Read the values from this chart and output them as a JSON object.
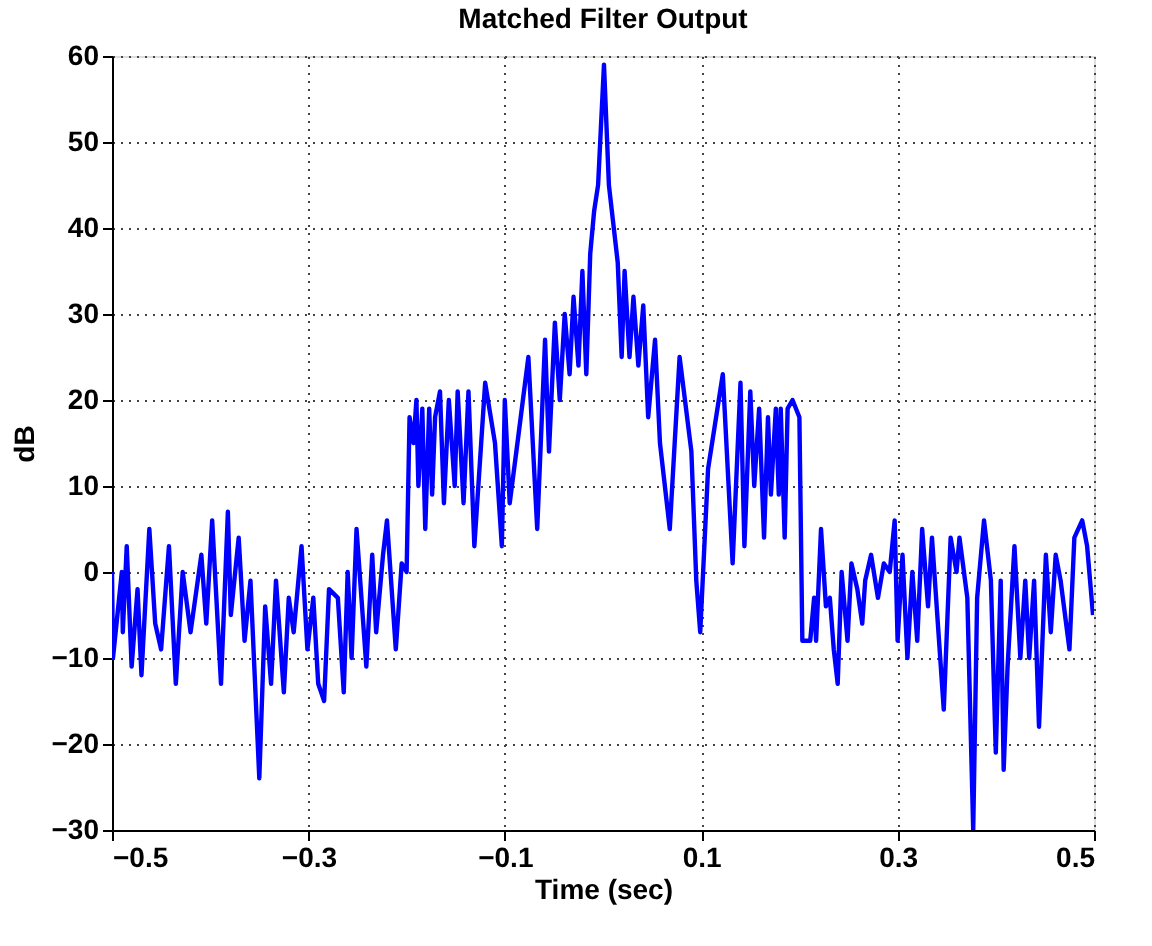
{
  "chart_data": {
    "type": "line",
    "title": "Matched Filter Output",
    "xlabel": "Time (sec)",
    "ylabel": "dB",
    "xlim": [
      -0.5,
      0.5
    ],
    "xticks": [
      -0.5,
      -0.3,
      -0.1,
      0.1,
      0.3,
      0.5
    ],
    "ylim": [
      -30,
      60
    ],
    "yticks": [
      -30,
      -20,
      -10,
      0,
      10,
      20,
      30,
      40,
      50,
      60
    ],
    "grid": true,
    "legend": false,
    "marker": "none",
    "line_style": "solid",
    "series": [
      {
        "color": "#0000ff",
        "x": [
          -0.5,
          -0.499,
          -0.49,
          -0.489,
          -0.485,
          -0.48,
          -0.474,
          -0.47,
          -0.462,
          -0.456,
          -0.45,
          -0.442,
          -0.435,
          -0.428,
          -0.42,
          -0.409,
          -0.404,
          -0.398,
          -0.389,
          -0.382,
          -0.379,
          -0.371,
          -0.365,
          -0.359,
          -0.35,
          -0.344,
          -0.338,
          -0.333,
          -0.325,
          -0.32,
          -0.315,
          -0.307,
          -0.301,
          -0.295,
          -0.29,
          -0.284,
          -0.279,
          -0.27,
          -0.264,
          -0.26,
          -0.256,
          -0.251,
          -0.241,
          -0.235,
          -0.231,
          -0.224,
          -0.22,
          -0.211,
          -0.205,
          -0.2,
          -0.197,
          -0.193,
          -0.19,
          -0.188,
          -0.184,
          -0.181,
          -0.177,
          -0.174,
          -0.171,
          -0.166,
          -0.162,
          -0.157,
          -0.151,
          -0.148,
          -0.142,
          -0.137,
          -0.131,
          -0.12,
          -0.11,
          -0.103,
          -0.1,
          -0.095,
          -0.086,
          -0.076,
          -0.067,
          -0.059,
          -0.055,
          -0.049,
          -0.044,
          -0.039,
          -0.034,
          -0.03,
          -0.025,
          -0.021,
          -0.017,
          -0.013,
          -0.009,
          -0.005,
          0.001,
          0.006,
          0.01,
          0.015,
          0.019,
          0.022,
          0.027,
          0.031,
          0.036,
          0.041,
          0.046,
          0.053,
          0.058,
          0.068,
          0.078,
          0.09,
          0.095,
          0.099,
          0.107,
          0.122,
          0.132,
          0.14,
          0.144,
          0.15,
          0.154,
          0.159,
          0.164,
          0.168,
          0.171,
          0.176,
          0.179,
          0.181,
          0.185,
          0.188,
          0.193,
          0.2,
          0.203,
          0.211,
          0.215,
          0.217,
          0.222,
          0.227,
          0.231,
          0.235,
          0.239,
          0.243,
          0.249,
          0.253,
          0.259,
          0.264,
          0.267,
          0.273,
          0.28,
          0.286,
          0.292,
          0.297,
          0.3,
          0.305,
          0.31,
          0.315,
          0.32,
          0.325,
          0.331,
          0.335,
          0.341,
          0.347,
          0.354,
          0.36,
          0.363,
          0.371,
          0.377,
          0.381,
          0.388,
          0.395,
          0.4,
          0.405,
          0.408,
          0.412,
          0.419,
          0.425,
          0.43,
          0.434,
          0.439,
          0.444,
          0.451,
          0.456,
          0.461,
          0.466,
          0.475,
          0.48,
          0.488,
          0.493,
          0.499
        ],
        "values": [
          0,
          -10,
          0,
          -7,
          3,
          -11,
          -2,
          -12,
          5,
          -6,
          -9,
          3,
          -13,
          0,
          -7,
          2,
          -6,
          6,
          -13,
          7,
          -5,
          4,
          -8,
          -1,
          -24,
          -4,
          -13,
          -1,
          -14,
          -3,
          -7,
          3,
          -9,
          -3,
          -13,
          -15,
          -2,
          -3,
          -14,
          0,
          -10,
          5,
          -11,
          2,
          -7,
          2,
          6,
          -9,
          1,
          0,
          18,
          15,
          20,
          10,
          19,
          5,
          19,
          9,
          18,
          21,
          8,
          20,
          10,
          21,
          8,
          21,
          3,
          22,
          15,
          3,
          20,
          8,
          16,
          25,
          5,
          27,
          14,
          29,
          20,
          30,
          23,
          32,
          24,
          35,
          23,
          37,
          42,
          45,
          59,
          45,
          41,
          36,
          25,
          35,
          25,
          32,
          24,
          31,
          18,
          27,
          15,
          5,
          25,
          14,
          -1,
          -7,
          12,
          23,
          1,
          22,
          3,
          21,
          10,
          19,
          4,
          18,
          9,
          19,
          9,
          19,
          4,
          19,
          20,
          18,
          -8,
          -8,
          -3,
          -8,
          5,
          -4,
          -3,
          -9,
          -13,
          0,
          -8,
          1,
          -2,
          -6,
          -1,
          2,
          -3,
          1,
          0,
          6,
          -8,
          2,
          -10,
          0,
          -8,
          5,
          -4,
          4,
          -6,
          -16,
          4,
          0,
          4,
          -3,
          -30,
          -3,
          6,
          -1,
          -21,
          -1,
          -23,
          -11,
          3,
          -10,
          -1,
          -10,
          -1,
          -18,
          2,
          -7,
          2,
          -1,
          -9,
          4,
          6,
          3,
          -5
        ]
      }
    ]
  }
}
